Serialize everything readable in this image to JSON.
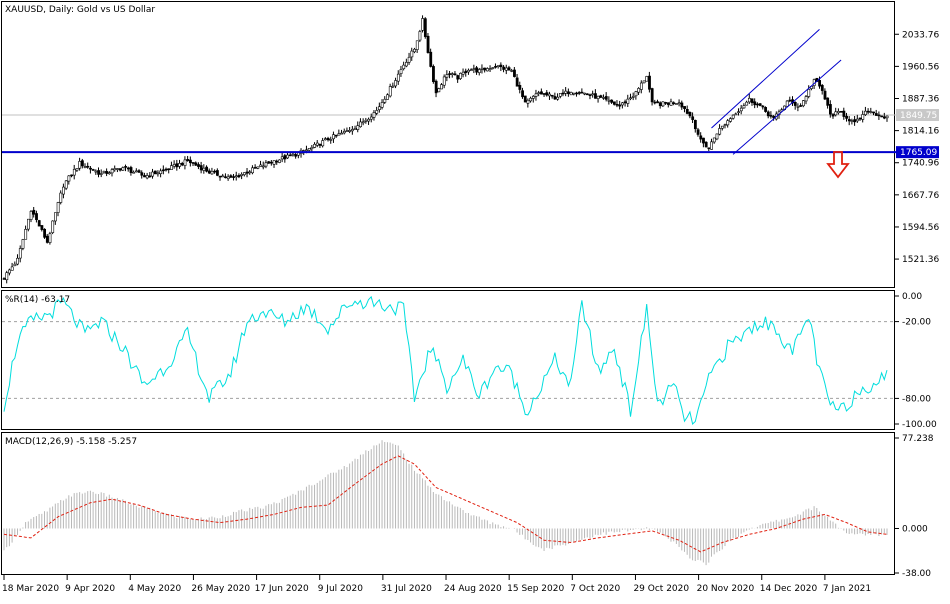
{
  "chart_data": [
    {
      "type": "candlestick",
      "title": "XAUUSD, Daily:  Gold vs US Dollar",
      "ylim": [
        1460,
        2105
      ],
      "y_ticks": [
        "2033.76",
        "1960.56",
        "1887.36",
        "1814.16",
        "1740.96",
        "1667.76",
        "1594.56",
        "1521.36"
      ],
      "current_price": "1849.75",
      "support_level": {
        "value": 1765.09,
        "label": "1765.09",
        "color": "#0000cc"
      },
      "channel_color": "#0000cc",
      "signal_arrow": {
        "direction": "down",
        "color": "#e02010"
      },
      "x_labels": [
        "18 Mar 2020",
        "9 Apr 2020",
        "4 May 2020",
        "26 May 2020",
        "17 Jun 2020",
        "9 Jul 2020",
        "31 Jul 2020",
        "24 Aug 2020",
        "15 Sep 2020",
        "7 Oct 2020",
        "29 Oct 2020",
        "20 Nov 2020",
        "14 Dec 2020",
        "7 Jan 2021"
      ],
      "close_path": [
        [
          0,
          1480
        ],
        [
          5,
          1520
        ],
        [
          10,
          1635
        ],
        [
          16,
          1560
        ],
        [
          22,
          1690
        ],
        [
          28,
          1740
        ],
        [
          36,
          1715
        ],
        [
          44,
          1730
        ],
        [
          52,
          1710
        ],
        [
          60,
          1725
        ],
        [
          68,
          1745
        ],
        [
          76,
          1720
        ],
        [
          84,
          1705
        ],
        [
          92,
          1725
        ],
        [
          100,
          1745
        ],
        [
          108,
          1760
        ],
        [
          114,
          1775
        ],
        [
          120,
          1795
        ],
        [
          126,
          1810
        ],
        [
          132,
          1830
        ],
        [
          138,
          1860
        ],
        [
          144,
          1920
        ],
        [
          148,
          1965
        ],
        [
          152,
          2000
        ],
        [
          155,
          2065
        ],
        [
          158,
          1960
        ],
        [
          160,
          1900
        ],
        [
          164,
          1945
        ],
        [
          168,
          1935
        ],
        [
          172,
          1955
        ],
        [
          176,
          1950
        ],
        [
          182,
          1962
        ],
        [
          188,
          1950
        ],
        [
          193,
          1875
        ],
        [
          198,
          1900
        ],
        [
          204,
          1890
        ],
        [
          210,
          1905
        ],
        [
          216,
          1898
        ],
        [
          222,
          1885
        ],
        [
          228,
          1870
        ],
        [
          234,
          1900
        ],
        [
          238,
          1940
        ],
        [
          240,
          1875
        ],
        [
          244,
          1875
        ],
        [
          250,
          1880
        ],
        [
          255,
          1840
        ],
        [
          258,
          1790
        ],
        [
          261,
          1775
        ],
        [
          264,
          1810
        ],
        [
          270,
          1850
        ],
        [
          276,
          1885
        ],
        [
          280,
          1870
        ],
        [
          285,
          1840
        ],
        [
          290,
          1880
        ],
        [
          295,
          1870
        ],
        [
          300,
          1930
        ],
        [
          303,
          1905
        ],
        [
          306,
          1850
        ],
        [
          310,
          1855
        ],
        [
          315,
          1830
        ],
        [
          320,
          1860
        ],
        [
          324,
          1850
        ],
        [
          327,
          1843
        ]
      ]
    },
    {
      "type": "line",
      "title": "%R(14) -63.17",
      "ylim": [
        -100,
        0
      ],
      "y_ticks": [
        "0.00",
        "-20.00",
        "-80.00",
        "-100.00"
      ],
      "levels": [
        -20,
        -80
      ],
      "color": "#00dddd",
      "path": [
        [
          0,
          -85
        ],
        [
          5,
          -35
        ],
        [
          10,
          -20
        ],
        [
          16,
          -15
        ],
        [
          22,
          -5
        ],
        [
          30,
          -30
        ],
        [
          36,
          -20
        ],
        [
          44,
          -40
        ],
        [
          52,
          -70
        ],
        [
          60,
          -55
        ],
        [
          68,
          -30
        ],
        [
          76,
          -80
        ],
        [
          84,
          -60
        ],
        [
          90,
          -20
        ],
        [
          96,
          -12
        ],
        [
          104,
          -20
        ],
        [
          112,
          -8
        ],
        [
          120,
          -25
        ],
        [
          128,
          -5
        ],
        [
          136,
          -4
        ],
        [
          142,
          -8
        ],
        [
          148,
          -10
        ],
        [
          152,
          -80
        ],
        [
          158,
          -40
        ],
        [
          164,
          -70
        ],
        [
          170,
          -50
        ],
        [
          176,
          -78
        ],
        [
          182,
          -55
        ],
        [
          188,
          -60
        ],
        [
          193,
          -90
        ],
        [
          198,
          -75
        ],
        [
          204,
          -50
        ],
        [
          210,
          -70
        ],
        [
          214,
          -5
        ],
        [
          220,
          -60
        ],
        [
          226,
          -40
        ],
        [
          232,
          -90
        ],
        [
          238,
          -10
        ],
        [
          242,
          -85
        ],
        [
          248,
          -70
        ],
        [
          252,
          -95
        ],
        [
          256,
          -98
        ],
        [
          262,
          -60
        ],
        [
          268,
          -40
        ],
        [
          274,
          -30
        ],
        [
          280,
          -20
        ],
        [
          286,
          -25
        ],
        [
          292,
          -45
        ],
        [
          298,
          -15
        ],
        [
          302,
          -60
        ],
        [
          306,
          -85
        ],
        [
          310,
          -90
        ],
        [
          316,
          -75
        ],
        [
          320,
          -70
        ],
        [
          324,
          -65
        ],
        [
          327,
          -63
        ]
      ]
    },
    {
      "type": "bar+line",
      "title": "MACD(12,26,9) -5.158 -5.257",
      "ylim": [
        -38,
        77.238
      ],
      "y_ticks": [
        "77.238",
        "0.000",
        "-38.00"
      ],
      "histogram_color": "#b8b8b8",
      "signal_color": "#e02010",
      "histogram": [
        [
          0,
          -20
        ],
        [
          8,
          5
        ],
        [
          16,
          15
        ],
        [
          24,
          28
        ],
        [
          32,
          32
        ],
        [
          40,
          27
        ],
        [
          48,
          20
        ],
        [
          56,
          15
        ],
        [
          64,
          10
        ],
        [
          72,
          8
        ],
        [
          80,
          10
        ],
        [
          88,
          15
        ],
        [
          96,
          18
        ],
        [
          104,
          25
        ],
        [
          112,
          35
        ],
        [
          120,
          45
        ],
        [
          128,
          55
        ],
        [
          134,
          66
        ],
        [
          140,
          75
        ],
        [
          146,
          70
        ],
        [
          152,
          50
        ],
        [
          160,
          30
        ],
        [
          170,
          15
        ],
        [
          180,
          5
        ],
        [
          188,
          0
        ],
        [
          194,
          -10
        ],
        [
          200,
          -18
        ],
        [
          210,
          -12
        ],
        [
          220,
          -5
        ],
        [
          230,
          -2
        ],
        [
          240,
          0
        ],
        [
          248,
          -12
        ],
        [
          254,
          -25
        ],
        [
          260,
          -30
        ],
        [
          268,
          -12
        ],
        [
          276,
          0
        ],
        [
          284,
          5
        ],
        [
          292,
          10
        ],
        [
          300,
          18
        ],
        [
          306,
          8
        ],
        [
          312,
          -5
        ],
        [
          320,
          -5
        ],
        [
          327,
          -5
        ]
      ],
      "signal": [
        [
          0,
          -5
        ],
        [
          10,
          -8
        ],
        [
          20,
          10
        ],
        [
          32,
          22
        ],
        [
          40,
          25
        ],
        [
          50,
          20
        ],
        [
          60,
          12
        ],
        [
          70,
          8
        ],
        [
          80,
          5
        ],
        [
          90,
          8
        ],
        [
          100,
          12
        ],
        [
          110,
          18
        ],
        [
          120,
          20
        ],
        [
          130,
          38
        ],
        [
          140,
          55
        ],
        [
          146,
          62
        ],
        [
          152,
          55
        ],
        [
          160,
          35
        ],
        [
          170,
          25
        ],
        [
          180,
          15
        ],
        [
          190,
          5
        ],
        [
          200,
          -10
        ],
        [
          210,
          -12
        ],
        [
          220,
          -8
        ],
        [
          230,
          -5
        ],
        [
          240,
          -2
        ],
        [
          250,
          -10
        ],
        [
          258,
          -20
        ],
        [
          266,
          -12
        ],
        [
          276,
          -5
        ],
        [
          286,
          0
        ],
        [
          296,
          8
        ],
        [
          304,
          12
        ],
        [
          312,
          5
        ],
        [
          320,
          -3
        ],
        [
          327,
          -5
        ]
      ]
    }
  ]
}
